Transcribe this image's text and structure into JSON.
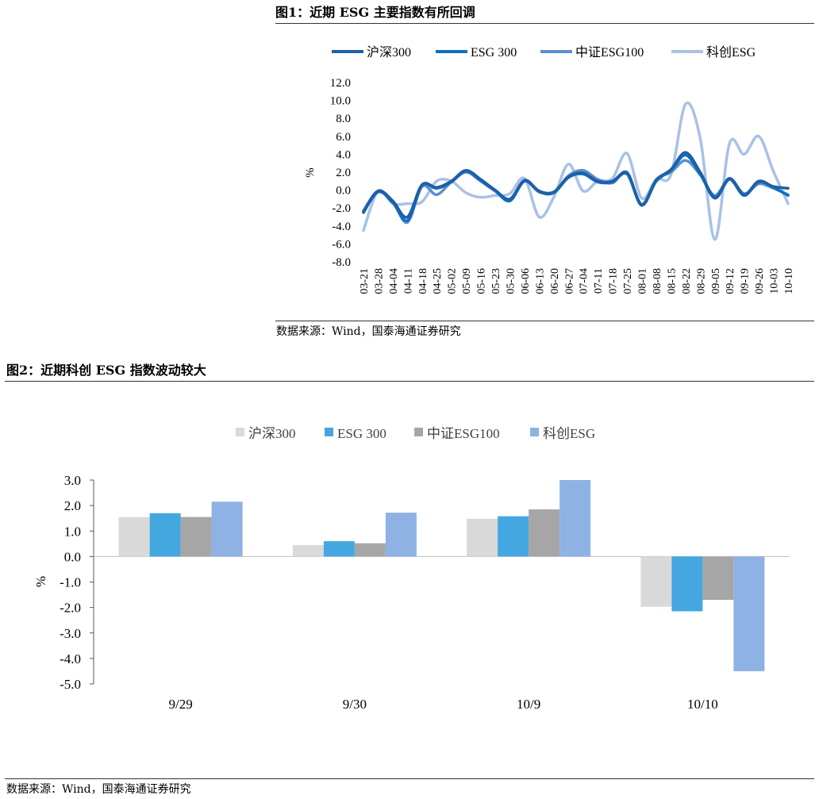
{
  "figure1": {
    "title": "图1：近期 ESG 主要指数有所回调",
    "source": "数据来源：Wind，国泰海通证券研究"
  },
  "figure2": {
    "title": "图2：近期科创 ESG 指数波动较大",
    "source": "数据来源：Wind，国泰海通证券研究"
  },
  "colors": {
    "hs300": "#1f5fa6",
    "esg300": "#0f70c0",
    "zz100": "#5b8fd0",
    "kc": "#a9c1e6",
    "bar_hs300": "#d9d9d9",
    "bar_esg300": "#44a7e0",
    "bar_zz100": "#a6a6a6",
    "bar_kc": "#8eb2e3"
  },
  "chart_data": [
    {
      "type": "line",
      "ylabel": "%",
      "ylim": [
        -8.0,
        12.0
      ],
      "yticks": [
        "12.0",
        "10.0",
        "8.0",
        "6.0",
        "4.0",
        "2.0",
        "0.0",
        "-2.0",
        "-4.0",
        "-6.0",
        "-8.0"
      ],
      "categories": [
        "03-21",
        "03-28",
        "04-04",
        "04-11",
        "04-18",
        "04-25",
        "05-02",
        "05-09",
        "05-16",
        "05-23",
        "05-30",
        "06-06",
        "06-13",
        "06-20",
        "06-27",
        "07-04",
        "07-11",
        "07-18",
        "07-25",
        "08-01",
        "08-08",
        "08-15",
        "08-22",
        "08-29",
        "09-05",
        "09-12",
        "09-19",
        "09-26",
        "10-03",
        "10-10"
      ],
      "legend": [
        "沪深300",
        "ESG 300",
        "中证ESG100",
        "科创ESG"
      ],
      "series": [
        {
          "name": "沪深300",
          "values": [
            -2.4,
            -0.1,
            -1.2,
            -3.0,
            0.6,
            0.3,
            1.0,
            2.2,
            1.2,
            0.0,
            -1.0,
            1.1,
            -0.1,
            -0.2,
            1.5,
            1.9,
            1.0,
            1.0,
            1.9,
            -1.6,
            1.1,
            2.3,
            4.2,
            2.0,
            -0.8,
            1.3,
            -0.5,
            1.0,
            0.4,
            0.2
          ]
        },
        {
          "name": "ESG 300",
          "values": [
            -2.5,
            -0.2,
            -1.4,
            -3.4,
            0.5,
            0.2,
            0.9,
            2.1,
            1.1,
            -0.1,
            -1.2,
            1.0,
            -0.2,
            -0.3,
            1.4,
            1.8,
            0.9,
            0.9,
            1.8,
            -1.7,
            1.0,
            2.2,
            3.9,
            1.8,
            -0.9,
            1.2,
            -0.6,
            0.9,
            0.3,
            -0.6
          ]
        },
        {
          "name": "中证ESG100",
          "values": [
            -2.3,
            -0.1,
            -1.3,
            -3.6,
            0.4,
            -0.5,
            0.9,
            2.0,
            1.0,
            -0.1,
            -1.1,
            1.0,
            -0.1,
            -0.3,
            1.6,
            2.2,
            1.2,
            0.8,
            2.0,
            -1.6,
            1.2,
            2.0,
            3.3,
            1.7,
            -0.6,
            1.3,
            -0.4,
            0.7,
            0.2,
            -0.5
          ]
        },
        {
          "name": "科创ESG",
          "values": [
            -4.5,
            -0.1,
            -1.5,
            -1.5,
            -1.3,
            1.0,
            1.0,
            -0.3,
            -0.8,
            -0.6,
            -0.4,
            1.3,
            -3.0,
            -0.8,
            2.9,
            -0.1,
            1.0,
            1.3,
            4.1,
            -0.9,
            1.2,
            1.7,
            9.6,
            5.8,
            -5.5,
            5.2,
            4.0,
            6.0,
            2.1,
            -1.5
          ]
        }
      ]
    },
    {
      "type": "bar",
      "ylabel": "%",
      "ylim": [
        -5.0,
        3.0
      ],
      "yticks": [
        "3.0",
        "2.0",
        "1.0",
        "0.0",
        "-1.0",
        "-2.0",
        "-3.0",
        "-4.0",
        "-5.0"
      ],
      "categories": [
        "9/29",
        "9/30",
        "10/9",
        "10/10"
      ],
      "legend": [
        "沪深300",
        "ESG 300",
        "中证ESG100",
        "科创ESG"
      ],
      "series": [
        {
          "name": "沪深300",
          "values": [
            1.55,
            0.45,
            1.48,
            -1.97
          ]
        },
        {
          "name": "ESG 300",
          "values": [
            1.7,
            0.6,
            1.58,
            -2.15
          ]
        },
        {
          "name": "中证ESG100",
          "values": [
            1.55,
            0.52,
            1.85,
            -1.7
          ]
        },
        {
          "name": "科创ESG",
          "values": [
            2.15,
            1.72,
            3.0,
            -4.5
          ]
        }
      ]
    }
  ]
}
